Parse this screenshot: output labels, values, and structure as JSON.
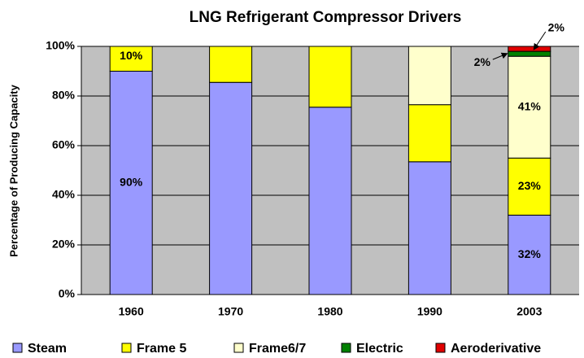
{
  "chart_data": {
    "type": "stacked_bar",
    "title": "LNG Refrigerant Compressor Drivers",
    "y_label": "Percentage of Producing Capacity",
    "categories": [
      "1960",
      "1970",
      "1980",
      "1990",
      "2003"
    ],
    "series": [
      {
        "name": "Steam",
        "color": "#9999ff",
        "values": [
          90,
          85.5,
          75.5,
          53.5,
          32
        ],
        "value_labels": [
          "90%",
          null,
          null,
          null,
          "32%"
        ]
      },
      {
        "name": "Frame 5",
        "color": "#ffff00",
        "values": [
          10,
          14.5,
          24.5,
          23,
          23
        ],
        "value_labels": [
          "10%",
          null,
          null,
          null,
          "23%"
        ]
      },
      {
        "name": "Frame6/7",
        "color": "#ffffcc",
        "values": [
          0,
          0,
          0,
          23.5,
          41
        ],
        "value_labels": [
          null,
          null,
          null,
          null,
          "41%"
        ]
      },
      {
        "name": "Electric",
        "color": "#008000",
        "values": [
          0,
          0,
          0,
          0,
          2
        ],
        "value_labels": [
          null,
          null,
          null,
          null,
          "2%"
        ]
      },
      {
        "name": "Aeroderivative",
        "color": "#e00000",
        "values": [
          0,
          0,
          0,
          0,
          2
        ],
        "value_labels": [
          null,
          null,
          null,
          null,
          "2%"
        ]
      }
    ],
    "ylim": [
      0,
      100
    ],
    "yticks": [
      {
        "value": 0,
        "label": "0%"
      },
      {
        "value": 20,
        "label": "20%"
      },
      {
        "value": 40,
        "label": "40%"
      },
      {
        "value": 60,
        "label": "60%"
      },
      {
        "value": 80,
        "label": "80%"
      },
      {
        "value": 100,
        "label": "100%"
      }
    ],
    "grid": true,
    "legend": "bottom"
  }
}
